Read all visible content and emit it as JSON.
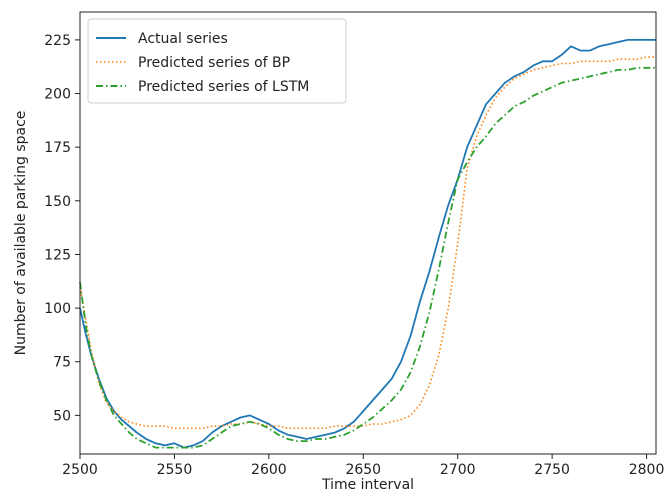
{
  "chart_data": {
    "type": "line",
    "xlabel": "Time interval",
    "ylabel": "Number of available parking space",
    "xlim": [
      2500,
      2805
    ],
    "ylim": [
      32,
      238
    ],
    "xticks": [
      2500,
      2550,
      2600,
      2650,
      2700,
      2750,
      2800
    ],
    "yticks": [
      50,
      75,
      100,
      125,
      150,
      175,
      200,
      225
    ],
    "grid": false,
    "legend_position": "top-left",
    "series": [
      {
        "name": "Actual series",
        "color": "#1f77b4",
        "style": "solid",
        "x": [
          2500,
          2503,
          2506,
          2510,
          2514,
          2518,
          2522,
          2526,
          2530,
          2535,
          2540,
          2545,
          2550,
          2555,
          2560,
          2565,
          2570,
          2575,
          2580,
          2585,
          2590,
          2595,
          2600,
          2605,
          2610,
          2615,
          2620,
          2625,
          2630,
          2635,
          2640,
          2645,
          2650,
          2655,
          2660,
          2665,
          2670,
          2675,
          2680,
          2685,
          2690,
          2695,
          2700,
          2705,
          2710,
          2715,
          2720,
          2725,
          2730,
          2735,
          2740,
          2745,
          2750,
          2755,
          2760,
          2765,
          2770,
          2775,
          2780,
          2785,
          2790,
          2795,
          2800,
          2805
        ],
        "y": [
          100,
          88,
          78,
          67,
          58,
          52,
          48,
          45,
          42,
          39,
          37,
          36,
          37,
          35,
          36,
          38,
          42,
          45,
          47,
          49,
          50,
          48,
          46,
          43,
          41,
          40,
          39,
          40,
          41,
          42,
          44,
          47,
          52,
          57,
          62,
          67,
          75,
          87,
          103,
          117,
          133,
          148,
          160,
          175,
          185,
          195,
          200,
          205,
          208,
          210,
          213,
          215,
          215,
          218,
          222,
          220,
          220,
          222,
          223,
          224,
          225,
          225,
          225,
          225
        ]
      },
      {
        "name": "Predicted series of BP",
        "color": "#ff7f0e",
        "style": "dotted",
        "x": [
          2500,
          2503,
          2506,
          2510,
          2514,
          2518,
          2522,
          2526,
          2530,
          2535,
          2540,
          2545,
          2550,
          2555,
          2560,
          2565,
          2570,
          2575,
          2580,
          2585,
          2590,
          2595,
          2600,
          2605,
          2610,
          2615,
          2620,
          2625,
          2630,
          2635,
          2640,
          2645,
          2650,
          2655,
          2660,
          2665,
          2670,
          2675,
          2680,
          2685,
          2690,
          2695,
          2700,
          2705,
          2710,
          2715,
          2720,
          2725,
          2730,
          2735,
          2740,
          2745,
          2750,
          2755,
          2760,
          2765,
          2770,
          2775,
          2780,
          2785,
          2790,
          2795,
          2800,
          2805
        ],
        "y": [
          110,
          95,
          80,
          65,
          56,
          52,
          49,
          47,
          46,
          45,
          45,
          45,
          44,
          44,
          44,
          44,
          45,
          45,
          46,
          46,
          47,
          46,
          45,
          45,
          44,
          44,
          44,
          44,
          44,
          45,
          45,
          45,
          45,
          46,
          46,
          47,
          48,
          50,
          55,
          64,
          78,
          100,
          130,
          165,
          180,
          190,
          198,
          203,
          207,
          209,
          211,
          212,
          213,
          214,
          214,
          215,
          215,
          215,
          215,
          216,
          216,
          216,
          217,
          217
        ]
      },
      {
        "name": "Predicted series of LSTM",
        "color": "#2ca02c",
        "style": "dashdot",
        "x": [
          2500,
          2503,
          2506,
          2510,
          2514,
          2518,
          2522,
          2526,
          2530,
          2535,
          2540,
          2545,
          2550,
          2555,
          2560,
          2565,
          2570,
          2575,
          2580,
          2585,
          2590,
          2595,
          2600,
          2605,
          2610,
          2615,
          2620,
          2625,
          2630,
          2635,
          2640,
          2645,
          2650,
          2655,
          2660,
          2665,
          2670,
          2675,
          2680,
          2685,
          2690,
          2695,
          2700,
          2705,
          2710,
          2715,
          2720,
          2725,
          2730,
          2735,
          2740,
          2745,
          2750,
          2755,
          2760,
          2765,
          2770,
          2775,
          2780,
          2785,
          2790,
          2795,
          2800,
          2805
        ],
        "y": [
          112,
          92,
          78,
          66,
          57,
          50,
          46,
          42,
          39,
          37,
          35,
          35,
          35,
          35,
          35,
          36,
          39,
          42,
          45,
          46,
          47,
          46,
          44,
          41,
          39,
          38,
          38,
          39,
          39,
          40,
          41,
          43,
          46,
          49,
          53,
          57,
          62,
          70,
          82,
          98,
          118,
          140,
          160,
          168,
          175,
          180,
          186,
          190,
          194,
          196,
          199,
          201,
          203,
          205,
          206,
          207,
          208,
          209,
          210,
          211,
          211,
          212,
          212,
          212
        ]
      }
    ]
  }
}
